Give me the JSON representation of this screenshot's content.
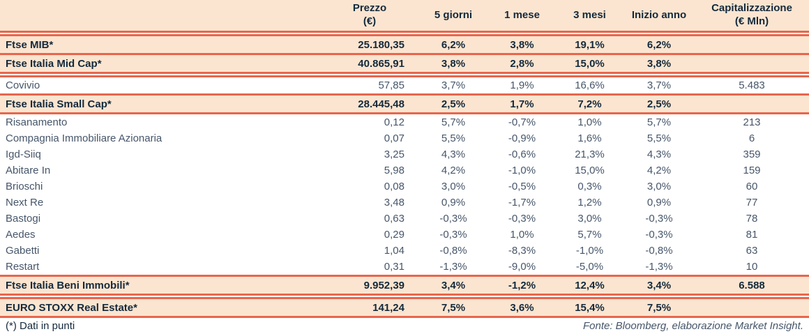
{
  "colors": {
    "row_highlight": "#fbe5d0",
    "rule_line": "#e8664c",
    "text_bold": "#14293c",
    "text_regular": "#46566a"
  },
  "table": {
    "header_sep_after": "double",
    "columns": [
      {
        "key": "name",
        "lines": [
          ""
        ]
      },
      {
        "key": "prezzo",
        "lines": [
          "Prezzo",
          "(€)"
        ]
      },
      {
        "key": "5-giorni",
        "lines": [
          "5 giorni"
        ]
      },
      {
        "key": "1-mese",
        "lines": [
          "1 mese"
        ]
      },
      {
        "key": "3-mesi",
        "lines": [
          "3 mesi"
        ]
      },
      {
        "key": "inizio-anno",
        "lines": [
          "Inizio anno"
        ]
      },
      {
        "key": "capitalizzazione",
        "lines": [
          "Capitalizzazione",
          "(€ Mln)"
        ]
      }
    ],
    "rows": [
      {
        "name": "Ftse MIB*",
        "type": "index",
        "sep_after": "single",
        "cells": [
          "25.180,35",
          "6,2%",
          "3,8%",
          "19,1%",
          "6,2%",
          ""
        ]
      },
      {
        "name": "Ftse Italia Mid Cap*",
        "type": "index",
        "sep_after": "double",
        "cells": [
          "40.865,91",
          "3,8%",
          "2,8%",
          "15,0%",
          "3,8%",
          ""
        ]
      },
      {
        "name": "Covivio",
        "type": "stock",
        "sep_after": "single",
        "cells": [
          "57,85",
          "3,7%",
          "1,9%",
          "16,6%",
          "3,7%",
          "5.483"
        ]
      },
      {
        "name": "Ftse Italia Small Cap*",
        "type": "index",
        "sep_after": "single",
        "cells": [
          "28.445,48",
          "2,5%",
          "1,7%",
          "7,2%",
          "2,5%",
          ""
        ]
      },
      {
        "name": "Risanamento",
        "type": "stock",
        "sep_after": "none",
        "cells": [
          "0,12",
          "5,7%",
          "-0,7%",
          "1,0%",
          "5,7%",
          "213"
        ]
      },
      {
        "name": "Compagnia Immobiliare Azionaria",
        "type": "stock",
        "sep_after": "none",
        "cells": [
          "0,07",
          "5,5%",
          "-0,9%",
          "1,6%",
          "5,5%",
          "6"
        ]
      },
      {
        "name": "Igd-Siiq",
        "type": "stock",
        "sep_after": "none",
        "cells": [
          "3,25",
          "4,3%",
          "-0,6%",
          "21,3%",
          "4,3%",
          "359"
        ]
      },
      {
        "name": "Abitare In",
        "type": "stock",
        "sep_after": "none",
        "cells": [
          "5,98",
          "4,2%",
          "-1,0%",
          "15,0%",
          "4,2%",
          "159"
        ]
      },
      {
        "name": "Brioschi",
        "type": "stock",
        "sep_after": "none",
        "cells": [
          "0,08",
          "3,0%",
          "-0,5%",
          "0,3%",
          "3,0%",
          "60"
        ]
      },
      {
        "name": "Next Re",
        "type": "stock",
        "sep_after": "none",
        "cells": [
          "3,48",
          "0,9%",
          "-1,7%",
          "1,2%",
          "0,9%",
          "77"
        ]
      },
      {
        "name": "Bastogi",
        "type": "stock",
        "sep_after": "none",
        "cells": [
          "0,63",
          "-0,3%",
          "-0,3%",
          "3,0%",
          "-0,3%",
          "78"
        ]
      },
      {
        "name": "Aedes",
        "type": "stock",
        "sep_after": "none",
        "cells": [
          "0,29",
          "-0,3%",
          "1,0%",
          "5,7%",
          "-0,3%",
          "81"
        ]
      },
      {
        "name": "Gabetti",
        "type": "stock",
        "sep_after": "none",
        "cells": [
          "1,04",
          "-0,8%",
          "-8,3%",
          "-1,0%",
          "-0,8%",
          "63"
        ]
      },
      {
        "name": "Restart",
        "type": "stock",
        "sep_after": "single",
        "cells": [
          "0,31",
          "-1,3%",
          "-9,0%",
          "-5,0%",
          "-1,3%",
          "10"
        ]
      },
      {
        "name": "Ftse Italia Beni Immobili*",
        "type": "index",
        "sep_after": "double",
        "cells": [
          "9.952,39",
          "3,4%",
          "-1,2%",
          "12,4%",
          "3,4%",
          "6.588"
        ]
      },
      {
        "name": "EURO STOXX Real Estate*",
        "type": "index",
        "sep_after": "single",
        "cells": [
          "141,24",
          "7,5%",
          "3,6%",
          "15,4%",
          "7,5%",
          ""
        ]
      }
    ]
  },
  "footer": {
    "note": "(*) Dati in punti",
    "source": "Fonte: Bloomberg, elaborazione Market Insight."
  }
}
